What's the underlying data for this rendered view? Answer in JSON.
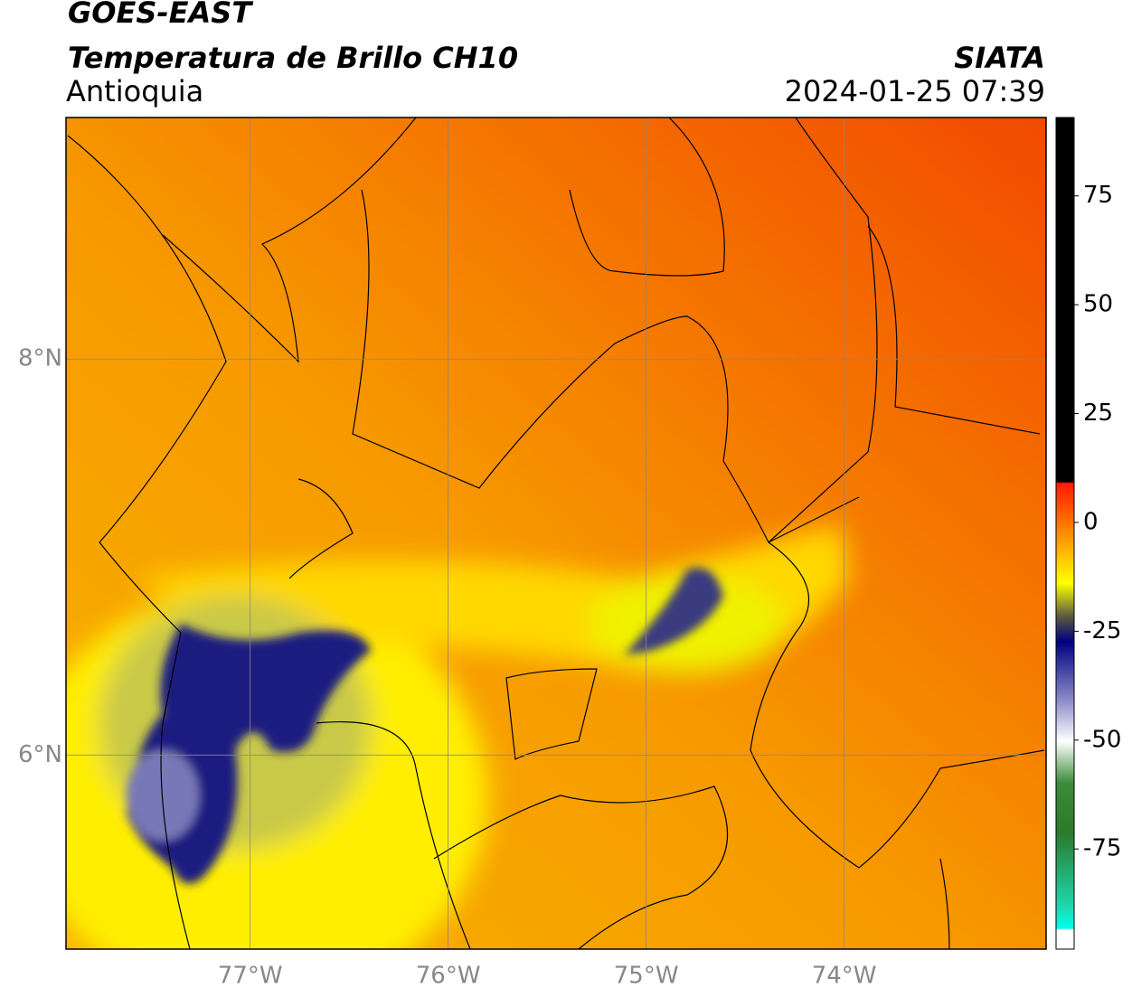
{
  "header": {
    "title": "GOES-EAST",
    "subtitle": "Temperatura de Brillo CH10",
    "region": "Antioquia",
    "source": "SIATA",
    "datetime": "2024-01-25 07:39"
  },
  "map": {
    "xlim": [
      -77.93,
      -72.98
    ],
    "ylim": [
      5.02,
      9.22
    ],
    "xticks": [
      {
        "value": -77,
        "label": "77°W"
      },
      {
        "value": -76,
        "label": "76°W"
      },
      {
        "value": -75,
        "label": "75°W"
      },
      {
        "value": -74,
        "label": "74°W"
      }
    ],
    "yticks": [
      {
        "value": 6,
        "label": "6°N"
      },
      {
        "value": 8,
        "label": "8°N"
      }
    ],
    "grid": true
  },
  "colorbar": {
    "clim": [
      -98,
      93
    ],
    "ticks": [
      -75,
      -50,
      -25,
      0,
      25,
      50,
      75
    ]
  }
}
